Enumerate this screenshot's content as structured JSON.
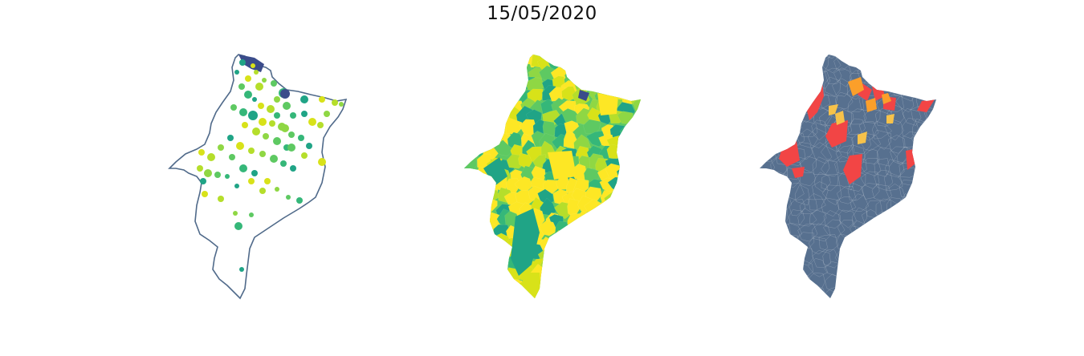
{
  "title": "15/05/2020",
  "colors": {
    "outline": "#506a8a",
    "viridis": [
      "#3b4c8b",
      "#26868e",
      "#20a486",
      "#35b779",
      "#5ec962",
      "#8fd744",
      "#b5de2b",
      "#d8e219",
      "#fde725"
    ],
    "risk_base": "#57708f",
    "risk_high": "#f24545",
    "risk_medium": "#fb9f2a",
    "risk_low": "#f7c24a"
  },
  "panels": [
    {
      "name": "points-map",
      "style": "outline-with-bubbles"
    },
    {
      "name": "choropleth-map",
      "style": "viridis-fill"
    },
    {
      "name": "risk-map",
      "style": "categorical-fill"
    }
  ]
}
